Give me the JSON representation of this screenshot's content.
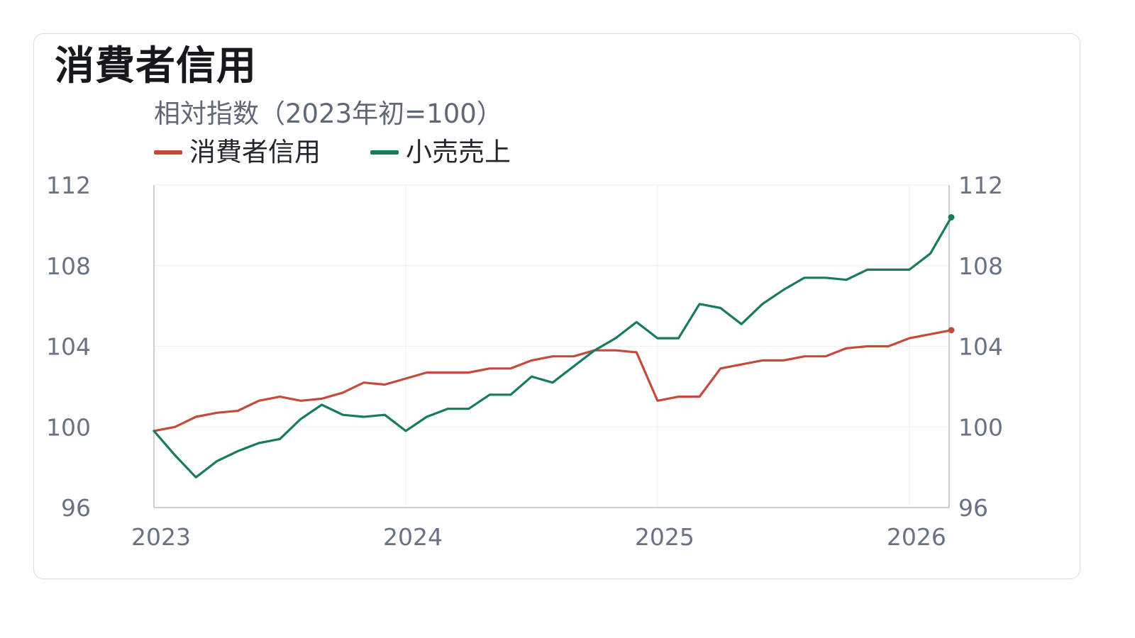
{
  "title": "消費者信用",
  "subtitle": "相対指数（2023年初=100）",
  "chart_data": {
    "type": "line",
    "x_start": "2023-01",
    "x_step": "month",
    "x_ticks": [
      "2023",
      "2024",
      "2025",
      "2026"
    ],
    "y_ticks": [
      96,
      100,
      104,
      108,
      112
    ],
    "ylim": [
      96,
      112
    ],
    "dual_y_axis": true,
    "grid": true,
    "legend_position": "top-left",
    "series": [
      {
        "name": "消費者信用",
        "color": "#c44b3c",
        "values": [
          99.8,
          100.0,
          100.5,
          100.7,
          100.8,
          101.3,
          101.5,
          101.3,
          101.4,
          101.7,
          102.2,
          102.1,
          102.4,
          102.7,
          102.7,
          102.7,
          102.9,
          102.9,
          103.3,
          103.5,
          103.5,
          103.8,
          103.8,
          103.7,
          101.3,
          101.5,
          101.5,
          102.9,
          103.1,
          103.3,
          103.3,
          103.5,
          103.5,
          103.9,
          104.0,
          104.0,
          104.4,
          104.6,
          104.8
        ]
      },
      {
        "name": "小売売上",
        "color": "#1a7a5e",
        "values": [
          99.8,
          98.6,
          97.5,
          98.3,
          98.8,
          99.2,
          99.4,
          100.4,
          101.1,
          100.6,
          100.5,
          100.6,
          99.8,
          100.5,
          100.9,
          100.9,
          101.6,
          101.6,
          102.5,
          102.2,
          103.0,
          103.8,
          104.4,
          105.2,
          104.4,
          104.4,
          106.1,
          105.9,
          105.1,
          106.1,
          106.8,
          107.4,
          107.4,
          107.3,
          107.8,
          107.8,
          107.8,
          108.6,
          110.4
        ]
      }
    ]
  }
}
